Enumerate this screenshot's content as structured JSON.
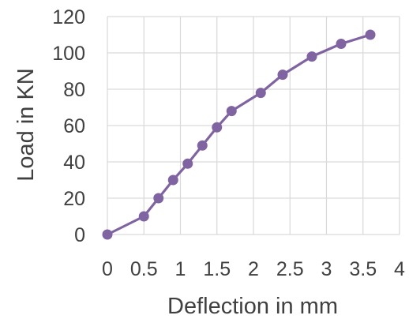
{
  "chart_data": {
    "type": "line",
    "title": "",
    "xlabel": "Deflection in mm",
    "ylabel": "Load in KN",
    "xlim": [
      0,
      4
    ],
    "ylim": [
      0,
      120
    ],
    "x_ticks": [
      "0",
      "0.5",
      "1",
      "1.5",
      "2",
      "2.5",
      "3",
      "3.5",
      "4"
    ],
    "y_ticks": [
      "0",
      "20",
      "40",
      "60",
      "80",
      "100",
      "120"
    ],
    "grid": true,
    "legend": "none",
    "series": [
      {
        "color": "#8064a2",
        "points": [
          {
            "x": 0,
            "y": 0
          },
          {
            "x": 0.5,
            "y": 10
          },
          {
            "x": 0.7,
            "y": 20
          },
          {
            "x": 0.9,
            "y": 30
          },
          {
            "x": 1.1,
            "y": 39
          },
          {
            "x": 1.3,
            "y": 49
          },
          {
            "x": 1.5,
            "y": 59
          },
          {
            "x": 1.7,
            "y": 68
          },
          {
            "x": 2.1,
            "y": 78
          },
          {
            "x": 2.4,
            "y": 88
          },
          {
            "x": 2.8,
            "y": 98
          },
          {
            "x": 3.2,
            "y": 105
          },
          {
            "x": 3.6,
            "y": 110
          }
        ]
      }
    ]
  }
}
